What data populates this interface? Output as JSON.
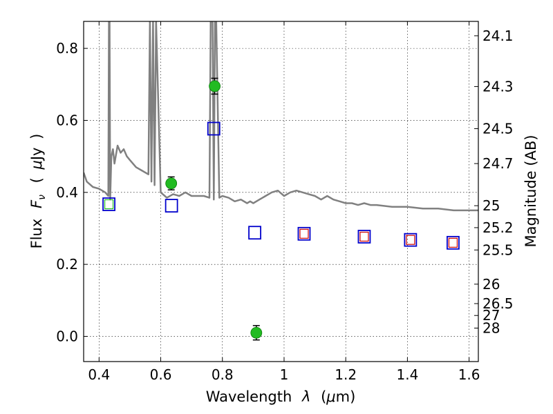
{
  "chart_data": {
    "type": "scatter",
    "title": "",
    "xlabel_parts": [
      "Wavelength",
      "λ",
      "(",
      "μ",
      "m)"
    ],
    "ylabel_parts": [
      "Flux",
      "F",
      "ν",
      "(",
      "μ",
      "Jy",
      ")"
    ],
    "y2label": "Magnitude (AB)",
    "xlim": [
      0.35,
      1.63
    ],
    "ylim": [
      -0.07,
      0.875
    ],
    "grid": true,
    "x_ticks": [
      {
        "v": 0.4,
        "label": "0.4"
      },
      {
        "v": 0.6,
        "label": "0.6"
      },
      {
        "v": 0.8,
        "label": "0.8"
      },
      {
        "v": 1.0,
        "label": "1"
      },
      {
        "v": 1.2,
        "label": "1.2"
      },
      {
        "v": 1.4,
        "label": "1.4"
      },
      {
        "v": 1.6,
        "label": "1.6"
      }
    ],
    "y_ticks": [
      {
        "v": 0.0,
        "label": "0.0"
      },
      {
        "v": 0.2,
        "label": "0.2"
      },
      {
        "v": 0.4,
        "label": "0.4"
      },
      {
        "v": 0.6,
        "label": "0.6"
      },
      {
        "v": 0.8,
        "label": "0.8"
      }
    ],
    "mag_ticks": [
      {
        "flux": 0.835,
        "label": "24.1"
      },
      {
        "flux": 0.694,
        "label": "24.3"
      },
      {
        "flux": 0.577,
        "label": "24.5"
      },
      {
        "flux": 0.48,
        "label": "24.7"
      },
      {
        "flux": 0.363,
        "label": "25"
      },
      {
        "flux": 0.302,
        "label": "25.2"
      },
      {
        "flux": 0.24,
        "label": "25.5"
      },
      {
        "flux": 0.145,
        "label": "26"
      },
      {
        "flux": 0.091,
        "label": "26.5"
      },
      {
        "flux": 0.058,
        "label": "27"
      },
      {
        "flux": 0.023,
        "label": "28"
      }
    ],
    "series": [
      {
        "role": "model spectrum",
        "color": "#808080",
        "x": [
          0.35,
          0.36,
          0.38,
          0.4,
          0.42,
          0.43,
          0.432,
          0.434,
          0.436,
          0.44,
          0.445,
          0.45,
          0.46,
          0.47,
          0.48,
          0.49,
          0.5,
          0.52,
          0.54,
          0.56,
          0.565,
          0.57,
          0.575,
          0.58,
          0.585,
          0.6,
          0.62,
          0.64,
          0.66,
          0.68,
          0.7,
          0.72,
          0.74,
          0.758,
          0.762,
          0.768,
          0.772,
          0.776,
          0.78,
          0.79,
          0.8,
          0.82,
          0.84,
          0.86,
          0.88,
          0.89,
          0.9,
          0.92,
          0.94,
          0.95,
          0.96,
          0.98,
          1.0,
          1.02,
          1.04,
          1.06,
          1.08,
          1.1,
          1.12,
          1.14,
          1.16,
          1.18,
          1.2,
          1.22,
          1.24,
          1.26,
          1.28,
          1.3,
          1.35,
          1.4,
          1.45,
          1.5,
          1.55,
          1.6,
          1.63
        ],
        "y": [
          0.455,
          0.43,
          0.415,
          0.41,
          0.4,
          0.39,
          0.875,
          0.875,
          0.38,
          0.5,
          0.52,
          0.48,
          0.53,
          0.51,
          0.52,
          0.5,
          0.49,
          0.47,
          0.46,
          0.45,
          0.875,
          0.43,
          0.875,
          0.42,
          0.875,
          0.4,
          0.385,
          0.395,
          0.39,
          0.4,
          0.39,
          0.39,
          0.39,
          0.385,
          0.875,
          0.875,
          0.38,
          0.875,
          0.875,
          0.385,
          0.39,
          0.385,
          0.375,
          0.38,
          0.37,
          0.375,
          0.37,
          0.38,
          0.39,
          0.395,
          0.4,
          0.405,
          0.39,
          0.4,
          0.405,
          0.4,
          0.395,
          0.39,
          0.38,
          0.39,
          0.38,
          0.375,
          0.37,
          0.37,
          0.365,
          0.37,
          0.365,
          0.365,
          0.36,
          0.36,
          0.355,
          0.355,
          0.35,
          0.35,
          0.35
        ]
      },
      {
        "role": "green photometry",
        "color": "#22bb22",
        "x": [
          0.634,
          0.775,
          0.91
        ],
        "y": [
          0.425,
          0.695,
          0.01
        ],
        "yerr": [
          0.018,
          0.022,
          0.02
        ]
      },
      {
        "role": "blue squares",
        "color": "#0000cc",
        "x": [
          0.432,
          0.635,
          0.772,
          0.905,
          1.065,
          1.26,
          1.41,
          1.548
        ],
        "y": [
          0.367,
          0.363,
          0.577,
          0.288,
          0.285,
          0.277,
          0.268,
          0.26
        ]
      },
      {
        "role": "inner squares",
        "x": [
          0.432,
          1.065,
          1.26,
          1.41,
          1.548
        ],
        "y": [
          0.367,
          0.285,
          0.277,
          0.268,
          0.26
        ],
        "colors": [
          "#22bb22",
          "#cc0000",
          "#cc0000",
          "#cc0000",
          "#cc0000"
        ]
      }
    ]
  }
}
